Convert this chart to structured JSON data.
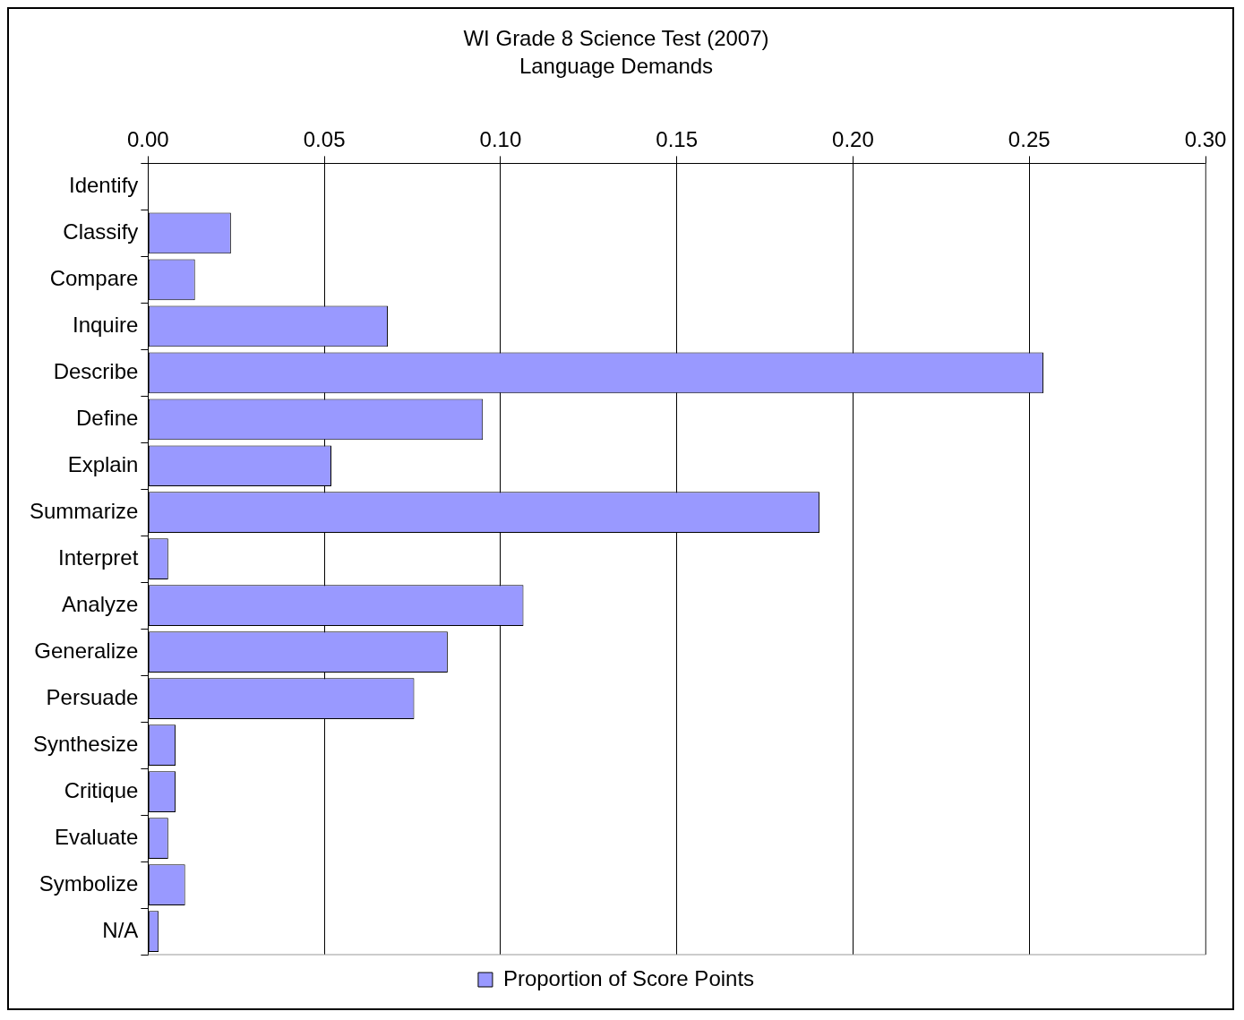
{
  "chart_data": {
    "type": "bar",
    "orientation": "horizontal",
    "title": "WI Grade 8 Science Test (2007)",
    "subtitle": "Language Demands",
    "categories": [
      "Identify",
      "Classify",
      "Compare",
      "Inquire",
      "Describe",
      "Define",
      "Explain",
      "Summarize",
      "Interpret",
      "Analyze",
      "Generalize",
      "Persuade",
      "Synthesize",
      "Critique",
      "Evaluate",
      "Symbolize",
      "N/A"
    ],
    "series": [
      {
        "name": "Proportion of Score Points",
        "color": "#9999ff",
        "values": [
          0,
          0.0235,
          0.0133,
          0.068,
          0.254,
          0.095,
          0.052,
          0.1905,
          0.0057,
          0.1065,
          0.085,
          0.0755,
          0.0078,
          0.0078,
          0.0057,
          0.0105,
          0.003
        ]
      }
    ],
    "xlim": [
      0,
      0.3
    ],
    "xticks": [
      {
        "value": 0,
        "label": "0.00"
      },
      {
        "value": 0.05,
        "label": "0.05"
      },
      {
        "value": 0.1,
        "label": "0.10"
      },
      {
        "value": 0.15,
        "label": "0.15"
      },
      {
        "value": 0.2,
        "label": "0.20"
      },
      {
        "value": 0.25,
        "label": "0.25"
      },
      {
        "value": 0.3,
        "label": "0.30"
      }
    ],
    "grid": "x",
    "legend": "bottom"
  }
}
